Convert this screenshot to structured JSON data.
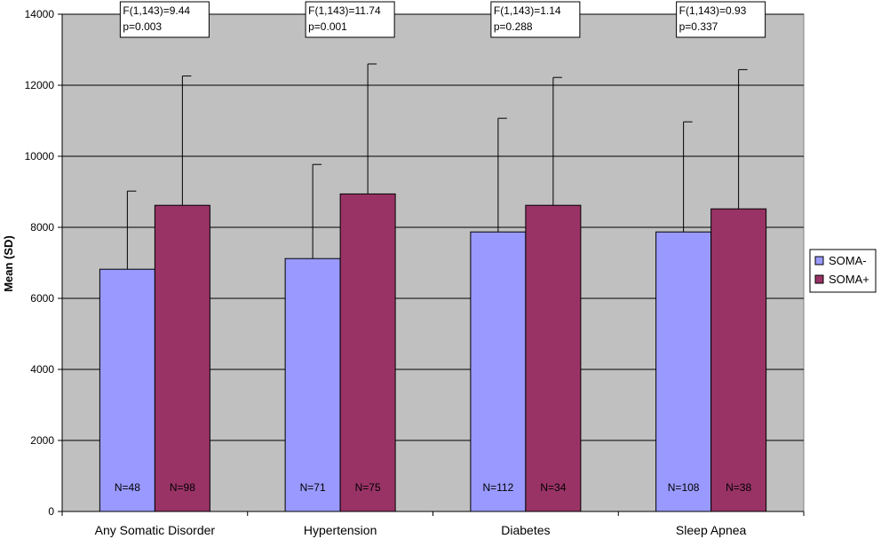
{
  "chart_data": {
    "type": "bar",
    "ylabel": "Mean (SD)",
    "xlabel": "",
    "ylim": [
      0,
      14000
    ],
    "yticks": [
      0,
      2000,
      4000,
      6000,
      8000,
      10000,
      12000,
      14000
    ],
    "grid": true,
    "legend_position": "right",
    "categories": [
      "Any Somatic Disorder",
      "Hypertension",
      "Diabetes",
      "Sleep Apnea"
    ],
    "series": [
      {
        "name": "SOMA-",
        "color": "#9999FF",
        "values": [
          6820,
          7120,
          7870,
          7870
        ],
        "sd": [
          2200,
          2650,
          3200,
          3100
        ],
        "n_labels": [
          "N=48",
          "N=71",
          "N=112",
          "N=108"
        ]
      },
      {
        "name": "SOMA+",
        "color": "#993366",
        "values": [
          8620,
          8940,
          8620,
          8520
        ],
        "sd": [
          3640,
          3660,
          3600,
          3920
        ],
        "n_labels": [
          "N=98",
          "N=75",
          "N=34",
          "N=38"
        ]
      }
    ],
    "annotations": [
      {
        "line1": "F(1,143)=9.44",
        "line2": "p=0.003"
      },
      {
        "line1": "F(1,143)=11.74",
        "line2": "p=0.001"
      },
      {
        "line1": "F(1,143)=1.14",
        "line2": "p=0.288"
      },
      {
        "line1": "F(1,143)=0.93",
        "line2": "p=0.337"
      }
    ],
    "plot_background": "#C0C0C0"
  }
}
